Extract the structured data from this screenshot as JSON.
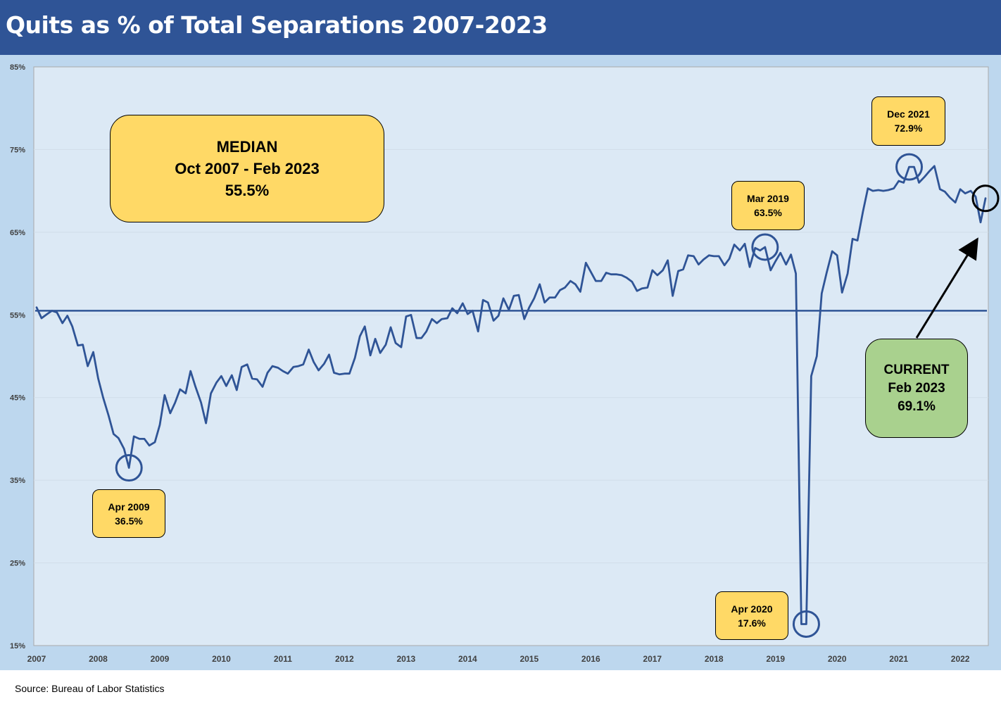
{
  "header": {
    "title": "Quits as % of Total Separations 2007-2023"
  },
  "footer": {
    "source": "Source: Bureau of Labor Statistics"
  },
  "colors": {
    "header_bg": "#2f5496",
    "chart_bg": "#bdd7ee",
    "plot_bg": "#dce9f5",
    "line": "#2f5496",
    "callout_yellow": "#ffd966",
    "callout_green": "#a9d18e"
  },
  "annotations": {
    "median": {
      "line1": "MEDIAN",
      "line2": "Oct 2007 - Feb 2023",
      "line3": "55.5%"
    },
    "current": {
      "line1": "CURRENT",
      "line2": "Feb 2023",
      "line3": "69.1%"
    },
    "low_2009": {
      "line1": "Apr 2009",
      "line2": "36.5%"
    },
    "peak_2019": {
      "line1": "Mar 2019",
      "line2": "63.5%"
    },
    "low_2020": {
      "line1": "Apr 2020",
      "line2": "17.6%"
    },
    "peak_2021": {
      "line1": "Dec 2021",
      "line2": "72.9%"
    }
  },
  "chart_data": {
    "type": "line",
    "title": "Quits as % of Total Separations 2007-2023",
    "xlabel": "",
    "ylabel": "",
    "ylim": [
      15,
      85
    ],
    "yticks": [
      "15%",
      "25%",
      "35%",
      "45%",
      "55%",
      "65%",
      "75%",
      "85%"
    ],
    "ytick_values": [
      15,
      25,
      35,
      45,
      55,
      65,
      75,
      85
    ],
    "xticks": [
      "2007",
      "2008",
      "2009",
      "2010",
      "2011",
      "2012",
      "2013",
      "2014",
      "2015",
      "2016",
      "2017",
      "2018",
      "2019",
      "2020",
      "2021",
      "2022"
    ],
    "xlim": [
      2007,
      2022.41
    ],
    "grid": "horizontal",
    "median": 55.5,
    "series": [
      {
        "x": [
          2007.0,
          2007.08,
          2007.17,
          2007.25,
          2007.33,
          2007.42,
          2007.5,
          2007.58,
          2007.67,
          2007.75,
          2007.83,
          2007.92,
          2008.0,
          2008.08,
          2008.17,
          2008.25,
          2008.33,
          2008.42,
          2008.5,
          2008.58,
          2008.67,
          2008.75,
          2008.83,
          2008.92,
          2009.0,
          2009.08,
          2009.17,
          2009.25,
          2009.33,
          2009.42,
          2009.5,
          2009.58,
          2009.67,
          2009.75,
          2009.83,
          2009.92,
          2010.0,
          2010.08,
          2010.17,
          2010.25,
          2010.33,
          2010.42,
          2010.5,
          2010.58,
          2010.67,
          2010.75,
          2010.83,
          2010.92,
          2011.0,
          2011.08,
          2011.17,
          2011.25,
          2011.33,
          2011.42,
          2011.5,
          2011.58,
          2011.67,
          2011.75,
          2011.83,
          2011.92,
          2012.0,
          2012.08,
          2012.17,
          2012.25,
          2012.33,
          2012.42,
          2012.5,
          2012.58,
          2012.67,
          2012.75,
          2012.83,
          2012.92,
          2013.0,
          2013.08,
          2013.17,
          2013.25,
          2013.33,
          2013.42,
          2013.5,
          2013.58,
          2013.67,
          2013.75,
          2013.83,
          2013.92,
          2014.0,
          2014.08,
          2014.17,
          2014.25,
          2014.33,
          2014.42,
          2014.5,
          2014.58,
          2014.67,
          2014.75,
          2014.83,
          2014.92,
          2015.0,
          2015.08,
          2015.17,
          2015.25,
          2015.33,
          2015.42,
          2015.5,
          2015.58,
          2015.67,
          2015.75,
          2015.83,
          2015.92,
          2016.0,
          2016.08,
          2016.17,
          2016.25,
          2016.33,
          2016.42,
          2016.5,
          2016.58,
          2016.67,
          2016.75,
          2016.83,
          2016.92,
          2017.0,
          2017.08,
          2017.17,
          2017.25,
          2017.33,
          2017.42,
          2017.5,
          2017.58,
          2017.67,
          2017.75,
          2017.83,
          2017.92,
          2018.0,
          2018.08,
          2018.17,
          2018.25,
          2018.33,
          2018.42,
          2018.5,
          2018.58,
          2018.67,
          2018.75,
          2018.83,
          2018.92,
          2019.0,
          2019.08,
          2019.17,
          2019.25,
          2019.33,
          2019.42,
          2019.5,
          2019.58,
          2019.67,
          2019.75,
          2019.83,
          2019.92,
          2020.0,
          2020.08,
          2020.17,
          2020.25,
          2020.33,
          2020.42,
          2020.5,
          2020.58,
          2020.67,
          2020.75,
          2020.83,
          2020.92,
          2021.0,
          2021.08,
          2021.17,
          2021.25,
          2021.33,
          2021.42,
          2021.5,
          2021.58,
          2021.67,
          2021.75,
          2021.83,
          2021.92,
          2022.0,
          2022.08,
          2022.17,
          2022.25,
          2022.33,
          2022.41
        ],
        "values": [
          55.9,
          54.6,
          55.1,
          55.5,
          55.3,
          54.0,
          54.9,
          53.6,
          51.3,
          51.4,
          48.8,
          50.5,
          47.3,
          45.0,
          42.8,
          40.6,
          40.1,
          38.8,
          36.5,
          40.3,
          40.0,
          40.0,
          39.2,
          39.6,
          41.7,
          45.3,
          43.1,
          44.4,
          46.0,
          45.5,
          48.2,
          46.3,
          44.4,
          41.9,
          45.5,
          46.8,
          47.6,
          46.4,
          47.7,
          45.9,
          48.7,
          49.0,
          47.3,
          47.2,
          46.3,
          48.0,
          48.8,
          48.6,
          48.2,
          47.9,
          48.7,
          48.8,
          49.0,
          50.8,
          49.3,
          48.3,
          49.1,
          50.2,
          48.0,
          47.8,
          47.9,
          47.9,
          49.8,
          52.4,
          53.6,
          50.1,
          52.1,
          50.4,
          51.4,
          53.5,
          51.6,
          51.1,
          54.8,
          55.0,
          52.2,
          52.2,
          53.0,
          54.5,
          54.0,
          54.5,
          54.6,
          55.8,
          55.2,
          56.4,
          55.1,
          55.5,
          53.0,
          56.8,
          56.5,
          54.3,
          54.9,
          57.0,
          55.6,
          57.3,
          57.4,
          54.5,
          55.9,
          57.0,
          58.7,
          56.5,
          57.1,
          57.1,
          58.0,
          58.3,
          59.1,
          58.7,
          57.8,
          61.3,
          60.2,
          59.1,
          59.1,
          60.1,
          59.9,
          59.9,
          59.8,
          59.5,
          59.0,
          57.9,
          58.2,
          58.3,
          60.4,
          59.8,
          60.4,
          61.6,
          57.3,
          60.3,
          60.5,
          62.2,
          62.1,
          61.1,
          61.7,
          62.2,
          62.1,
          62.1,
          61.0,
          61.8,
          63.5,
          62.8,
          63.6,
          60.8,
          63.1,
          62.8,
          63.2,
          60.4,
          61.5,
          62.5,
          61.1,
          62.3,
          60.0,
          17.6,
          17.6,
          47.6,
          50.0,
          57.6,
          60.1,
          62.7,
          62.2,
          57.7,
          60.0,
          64.2,
          64.0,
          67.5,
          70.3,
          70.0,
          70.1,
          70.0,
          70.1,
          70.3,
          71.2,
          71.0,
          72.9,
          72.9,
          71.0,
          71.7,
          72.4,
          73.0,
          70.2,
          69.9,
          69.2,
          68.6,
          70.2,
          69.7,
          70.0,
          69.3,
          66.2,
          69.1
        ]
      }
    ]
  }
}
